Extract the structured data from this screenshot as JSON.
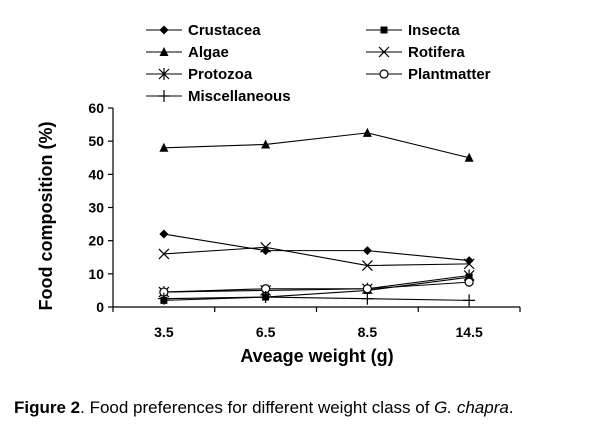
{
  "chart_data": {
    "type": "line",
    "categories": [
      "3.5",
      "6.5",
      "8.5",
      "14.5"
    ],
    "xlabel": "Aveage weight (g)",
    "ylabel": "Food composition (%)",
    "ylim": [
      0,
      60
    ],
    "yticks": [
      0,
      10,
      20,
      30,
      40,
      50,
      60
    ],
    "legend_position": "top",
    "series": [
      {
        "name": "Crustacea",
        "marker": "diamond",
        "values": [
          22,
          17,
          17,
          14
        ]
      },
      {
        "name": "Insecta",
        "marker": "square",
        "values": [
          2,
          3,
          5,
          9
        ]
      },
      {
        "name": "Algae",
        "marker": "triangle",
        "values": [
          48,
          49,
          52.5,
          45
        ]
      },
      {
        "name": "Rotifera",
        "marker": "x",
        "values": [
          16,
          18,
          12.5,
          13
        ]
      },
      {
        "name": "Protozoa",
        "marker": "asterisk",
        "values": [
          4.5,
          5,
          5.5,
          9.5
        ]
      },
      {
        "name": "Plantmatter",
        "marker": "circle",
        "values": [
          4.5,
          5.5,
          5.5,
          7.5
        ]
      },
      {
        "name": "Miscellaneous",
        "marker": "plus",
        "values": [
          2.5,
          3,
          2.5,
          2
        ]
      }
    ]
  },
  "caption": {
    "label": "Figure 2",
    "text": ". Food preferences for different weight class of ",
    "species": "G. chapra",
    "end": "."
  }
}
